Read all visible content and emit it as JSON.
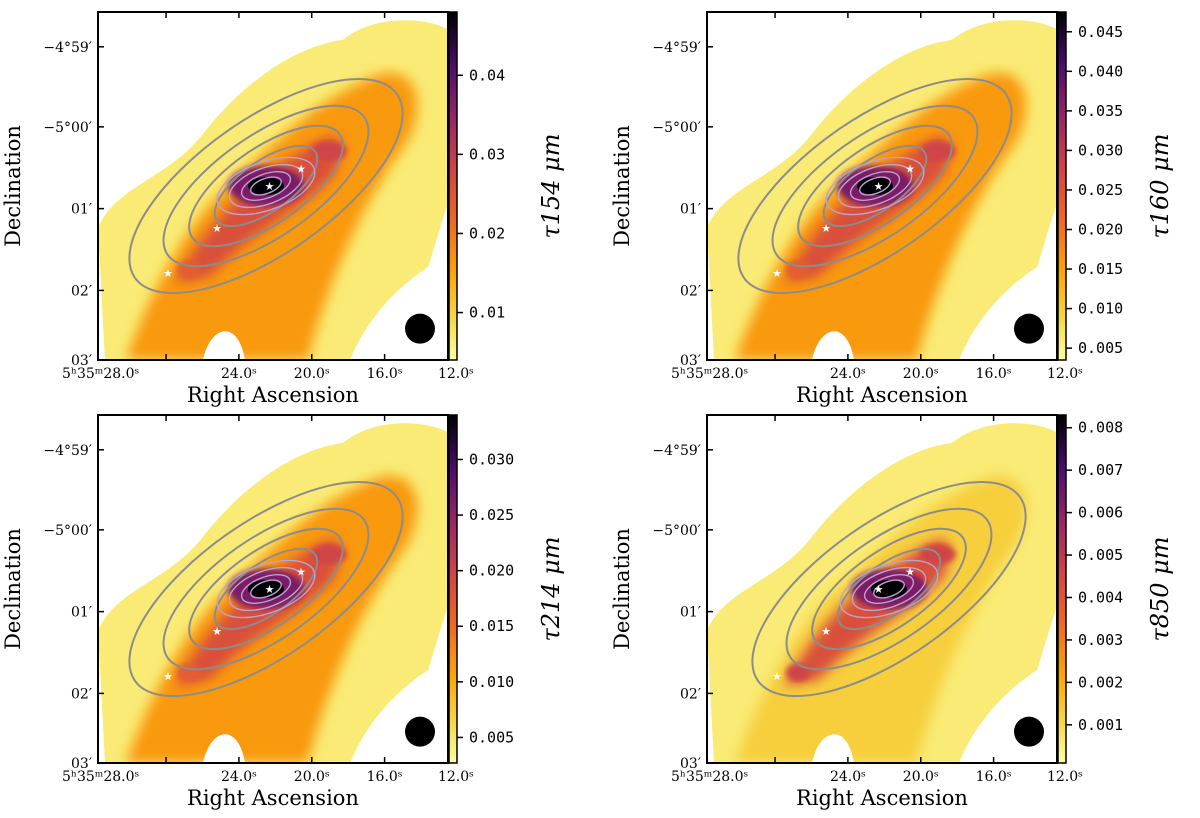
{
  "chart_data": [
    {
      "type": "heatmap",
      "xlabel": "Right Ascension",
      "ylabel": "Declination",
      "xticks": [
        "5ʰ35ᵐ28.0ˢ",
        "24.0ˢ",
        "20.0ˢ",
        "16.0ˢ",
        "12.0ˢ"
      ],
      "yticks": [
        "−4°59′",
        "−5°00′",
        "01′",
        "02′",
        "03′"
      ],
      "colorbar_label": "τ154 μm",
      "colorbar_ticks": [
        "0.01",
        "0.02",
        "0.03",
        "0.04"
      ],
      "colorbar_tick_values": [
        0.01,
        0.02,
        0.03,
        0.04
      ],
      "colorbar_range": [
        0.004,
        0.048
      ],
      "colormap": "inferno_r",
      "contours": true,
      "beam_marker": true,
      "stars": 4
    },
    {
      "type": "heatmap",
      "xlabel": "Right Ascension",
      "ylabel": "Declination",
      "xticks": [
        "5ʰ35ᵐ28.0ˢ",
        "24.0ˢ",
        "20.0ˢ",
        "16.0ˢ",
        "12.0ˢ"
      ],
      "yticks": [
        "−4°59′",
        "−5°00′",
        "01′",
        "02′",
        "03′"
      ],
      "colorbar_label": "τ160 μm",
      "colorbar_ticks": [
        "0.005",
        "0.010",
        "0.015",
        "0.020",
        "0.025",
        "0.030",
        "0.035",
        "0.040",
        "0.045"
      ],
      "colorbar_tick_values": [
        0.005,
        0.01,
        0.015,
        0.02,
        0.025,
        0.03,
        0.035,
        0.04,
        0.045
      ],
      "colorbar_range": [
        0.0035,
        0.0475
      ],
      "colormap": "inferno_r",
      "contours": true,
      "beam_marker": true,
      "stars": 4
    },
    {
      "type": "heatmap",
      "xlabel": "Right Ascension",
      "ylabel": "Declination",
      "xticks": [
        "5ʰ35ᵐ28.0ˢ",
        "24.0ˢ",
        "20.0ˢ",
        "16.0ˢ",
        "12.0ˢ"
      ],
      "yticks": [
        "−4°59′",
        "−5°00′",
        "01′",
        "02′",
        "03′"
      ],
      "colorbar_label": "τ214 μm",
      "colorbar_ticks": [
        "0.005",
        "0.010",
        "0.015",
        "0.020",
        "0.025",
        "0.030"
      ],
      "colorbar_tick_values": [
        0.005,
        0.01,
        0.015,
        0.02,
        0.025,
        0.03
      ],
      "colorbar_range": [
        0.0027,
        0.034
      ],
      "colormap": "inferno_r",
      "contours": true,
      "beam_marker": true,
      "stars": 4
    },
    {
      "type": "heatmap",
      "xlabel": "Right Ascension",
      "ylabel": "Declination",
      "xticks": [
        "5ʰ35ᵐ28.0ˢ",
        "24.0ˢ",
        "20.0ˢ",
        "16.0ˢ",
        "12.0ˢ"
      ],
      "yticks": [
        "−4°59′",
        "−5°00′",
        "01′",
        "02′",
        "03′"
      ],
      "colorbar_label": "τ850 μm",
      "colorbar_ticks": [
        "0.001",
        "0.002",
        "0.003",
        "0.004",
        "0.005",
        "0.006",
        "0.007",
        "0.008"
      ],
      "colorbar_tick_values": [
        0.001,
        0.002,
        0.003,
        0.004,
        0.005,
        0.006,
        0.007,
        0.008
      ],
      "colorbar_range": [
        0.0001,
        0.0083
      ],
      "colormap": "inferno_r",
      "contours": true,
      "beam_marker": true,
      "stars": 4
    }
  ]
}
